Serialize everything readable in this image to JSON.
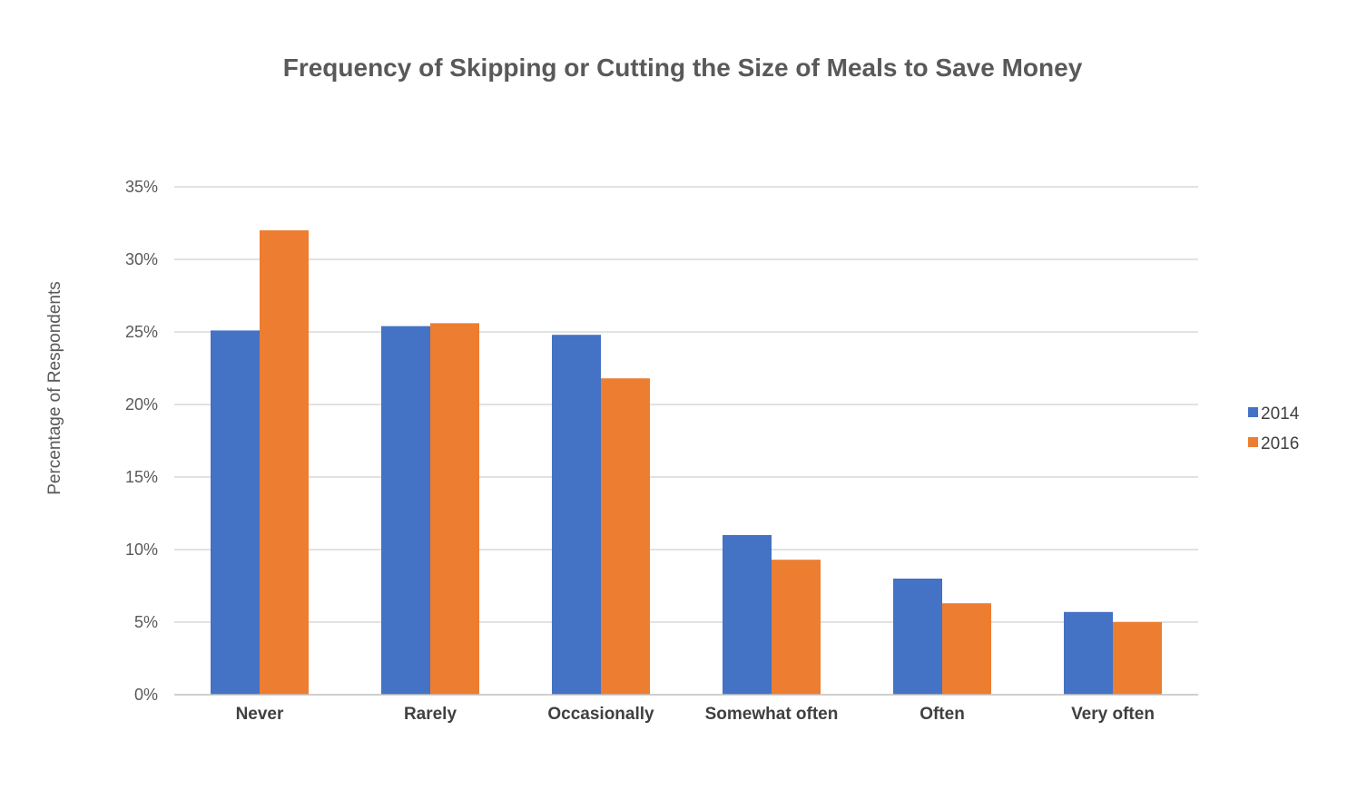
{
  "chart_data": {
    "type": "bar",
    "title": "Frequency of Skipping or Cutting the Size of Meals to Save Money",
    "xlabel": "",
    "ylabel": "Percentage of Respondents",
    "categories": [
      "Never",
      "Rarely",
      "Occasionally",
      "Somewhat often",
      "Often",
      "Very often"
    ],
    "series": [
      {
        "name": "2014",
        "color": "#4472c4",
        "values": [
          25.1,
          25.4,
          24.8,
          11.0,
          8.0,
          5.7
        ]
      },
      {
        "name": "2016",
        "color": "#ed7d31",
        "values": [
          32.0,
          25.6,
          21.8,
          9.3,
          6.3,
          5.0
        ]
      }
    ],
    "ylim": [
      0,
      35
    ],
    "yticks": [
      0,
      5,
      10,
      15,
      20,
      25,
      30,
      35
    ],
    "ytick_labels": [
      "0%",
      "5%",
      "10%",
      "15%",
      "20%",
      "25%",
      "30%",
      "35%"
    ],
    "grid": true,
    "legend_position": "right"
  }
}
